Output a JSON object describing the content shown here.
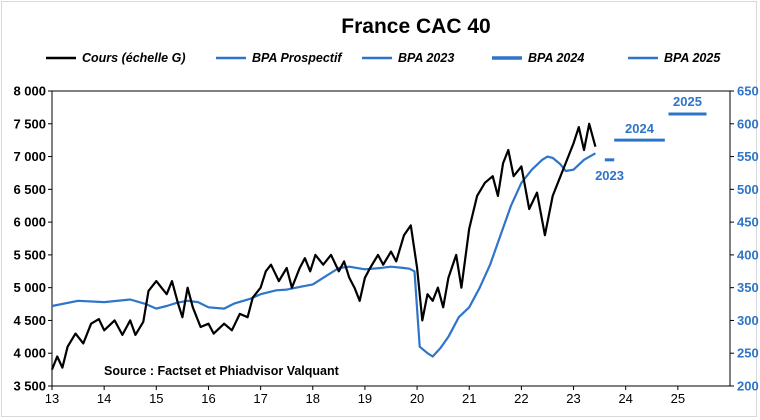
{
  "chart_data": {
    "type": "line",
    "title": "France CAC 40",
    "source": "Source : Factset et Phiadvisor Valquant",
    "colors": {
      "cours": "#000000",
      "bpa": "#2e75c9"
    },
    "legend": [
      {
        "label": "Cours (échelle G)",
        "color": "#000000"
      },
      {
        "label": "BPA Prospectif",
        "color": "#2e75c9"
      },
      {
        "label": "BPA 2023",
        "color": "#2e75c9"
      },
      {
        "label": "BPA 2024",
        "color": "#2e75c9"
      },
      {
        "label": "BPA 2025",
        "color": "#2e75c9"
      }
    ],
    "x_ticks": [
      "13",
      "14",
      "15",
      "16",
      "17",
      "18",
      "19",
      "20",
      "21",
      "22",
      "23",
      "24",
      "25"
    ],
    "x_tick_values": [
      2013,
      2014,
      2015,
      2016,
      2017,
      2018,
      2019,
      2020,
      2021,
      2022,
      2023,
      2024,
      2025
    ],
    "xlim": [
      2013,
      2026
    ],
    "y_left": {
      "range": [
        3500,
        8000
      ],
      "ticks": [
        "3 500",
        "4 000",
        "4 500",
        "5 000",
        "5 500",
        "6 000",
        "6 500",
        "7 000",
        "7 500",
        "8 000"
      ],
      "tick_values": [
        3500,
        4000,
        4500,
        5000,
        5500,
        6000,
        6500,
        7000,
        7500,
        8000
      ]
    },
    "y_right": {
      "range": [
        200,
        650
      ],
      "ticks": [
        "200",
        "250",
        "300",
        "350",
        "400",
        "450",
        "500",
        "550",
        "600",
        "650"
      ],
      "tick_values": [
        200,
        250,
        300,
        350,
        400,
        450,
        500,
        550,
        600,
        650
      ]
    },
    "series": [
      {
        "name": "Cours (échelle G)",
        "axis": "left",
        "x": [
          2013.0,
          2013.1,
          2013.2,
          2013.3,
          2013.45,
          2013.6,
          2013.75,
          2013.9,
          2014.0,
          2014.2,
          2014.35,
          2014.5,
          2014.6,
          2014.75,
          2014.85,
          2015.0,
          2015.1,
          2015.2,
          2015.3,
          2015.42,
          2015.5,
          2015.6,
          2015.7,
          2015.85,
          2016.0,
          2016.1,
          2016.3,
          2016.45,
          2016.6,
          2016.75,
          2016.85,
          2017.0,
          2017.1,
          2017.2,
          2017.35,
          2017.5,
          2017.6,
          2017.75,
          2017.85,
          2017.95,
          2018.05,
          2018.2,
          2018.35,
          2018.5,
          2018.6,
          2018.7,
          2018.8,
          2018.9,
          2019.0,
          2019.1,
          2019.25,
          2019.35,
          2019.5,
          2019.6,
          2019.75,
          2019.88,
          2020.0,
          2020.1,
          2020.2,
          2020.3,
          2020.4,
          2020.5,
          2020.6,
          2020.75,
          2020.85,
          2021.0,
          2021.15,
          2021.3,
          2021.45,
          2021.55,
          2021.65,
          2021.75,
          2021.85,
          2022.0,
          2022.15,
          2022.3,
          2022.45,
          2022.6,
          2022.75,
          2022.85,
          2023.0,
          2023.1,
          2023.2,
          2023.3,
          2023.42
        ],
        "y": [
          3750,
          3950,
          3780,
          4100,
          4300,
          4150,
          4450,
          4520,
          4350,
          4500,
          4280,
          4500,
          4280,
          4480,
          4950,
          5100,
          5000,
          4900,
          5100,
          4750,
          4550,
          5000,
          4700,
          4400,
          4450,
          4300,
          4450,
          4350,
          4600,
          4550,
          4850,
          5000,
          5250,
          5350,
          5100,
          5300,
          5000,
          5300,
          5450,
          5250,
          5500,
          5350,
          5500,
          5250,
          5400,
          5150,
          5000,
          4800,
          5150,
          5300,
          5500,
          5350,
          5550,
          5400,
          5800,
          5950,
          5300,
          4500,
          4900,
          4800,
          5000,
          4700,
          5150,
          5500,
          5000,
          5900,
          6400,
          6600,
          6700,
          6400,
          6900,
          7100,
          6700,
          6850,
          6200,
          6450,
          5800,
          6400,
          6700,
          6900,
          7200,
          7450,
          7100,
          7500,
          7150
        ]
      },
      {
        "name": "BPA Prospectif",
        "axis": "right",
        "x": [
          2013.0,
          2013.5,
          2014.0,
          2014.5,
          2014.8,
          2015.0,
          2015.2,
          2015.4,
          2015.6,
          2015.8,
          2016.0,
          2016.3,
          2016.5,
          2016.8,
          2017.0,
          2017.3,
          2017.5,
          2017.8,
          2018.0,
          2018.2,
          2018.5,
          2018.7,
          2019.0,
          2019.3,
          2019.5,
          2019.75,
          2019.85,
          2019.95,
          2020.05,
          2020.2,
          2020.3,
          2020.45,
          2020.6,
          2020.8,
          2021.0,
          2021.2,
          2021.4,
          2021.6,
          2021.8,
          2022.0,
          2022.2,
          2022.4,
          2022.5,
          2022.6,
          2022.75,
          2022.85,
          2023.0,
          2023.2,
          2023.42
        ],
        "y": [
          322,
          330,
          328,
          332,
          325,
          318,
          322,
          327,
          330,
          328,
          320,
          318,
          326,
          333,
          340,
          346,
          347,
          352,
          355,
          365,
          380,
          382,
          378,
          380,
          382,
          380,
          379,
          375,
          260,
          250,
          245,
          258,
          275,
          305,
          320,
          350,
          385,
          430,
          475,
          510,
          530,
          545,
          550,
          548,
          538,
          528,
          530,
          545,
          555
        ]
      }
    ],
    "targets": [
      {
        "label": "2023",
        "value": 545,
        "x_start": 2023.6,
        "x_end": 2023.78
      },
      {
        "label": "2024",
        "value": 575,
        "x_start": 2023.78,
        "x_end": 2024.75
      },
      {
        "label": "2025",
        "value": 615,
        "x_start": 2024.82,
        "x_end": 2025.55
      }
    ]
  }
}
